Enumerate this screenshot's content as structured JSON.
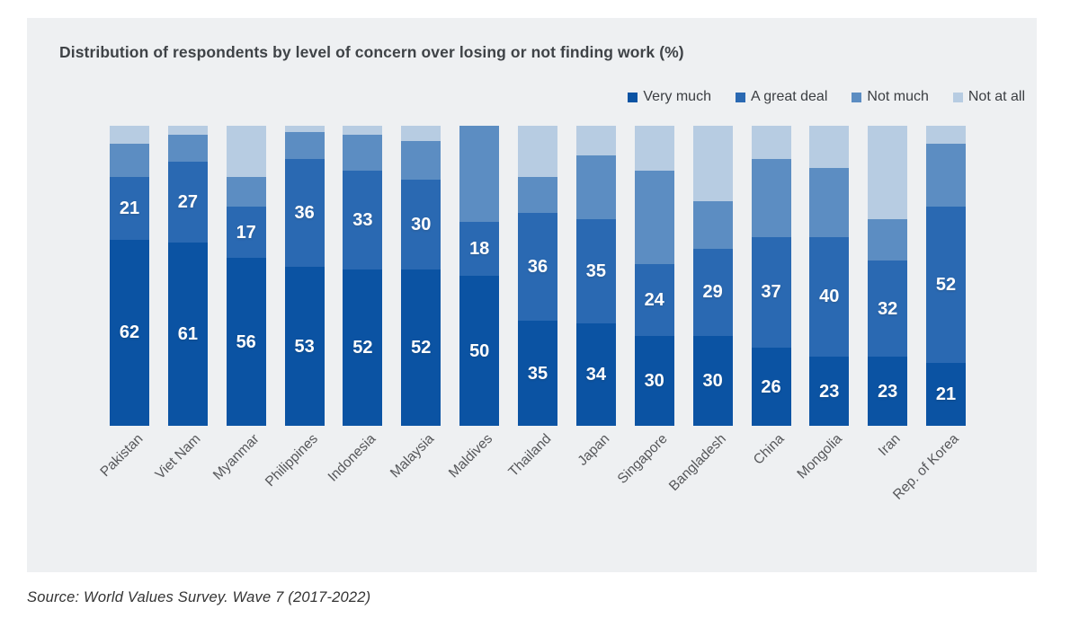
{
  "title": "Distribution of respondents by level of concern over losing or not finding work (%)",
  "source": "Source: World Values Survey. Wave 7 (2017-2022)",
  "colors": {
    "page_bg": "#ffffff",
    "panel_bg": "#eef0f2",
    "title_text": "#3f4347",
    "legend_text": "#3b3e42",
    "axis_label_text": "#56575a",
    "bar_value_text": "#ffffff",
    "source_text": "#333333"
  },
  "chart_data": {
    "type": "bar",
    "stacked": true,
    "unit": "%",
    "ylim": [
      0,
      100
    ],
    "gridlines": false,
    "legend_position": "top-right",
    "labels_shown_for_series": [
      "Very much",
      "A great deal"
    ],
    "categories": [
      "Pakistan",
      "Viet Nam",
      "Myanmar",
      "Philippines",
      "Indonesia",
      "Malaysia",
      "Maldives",
      "Thailand",
      "Japan",
      "Singapore",
      "Bangladesh",
      "China",
      "Mongolia",
      "Iran",
      "Rep. of Korea"
    ],
    "series": [
      {
        "name": "Very much",
        "color": "#0b53a3",
        "values": [
          62,
          61,
          56,
          53,
          52,
          52,
          50,
          35,
          34,
          30,
          30,
          26,
          23,
          23,
          21
        ]
      },
      {
        "name": "A great deal",
        "color": "#2a69b2",
        "values": [
          21,
          27,
          17,
          36,
          33,
          30,
          18,
          36,
          35,
          24,
          29,
          37,
          40,
          32,
          52
        ]
      },
      {
        "name": "Not much",
        "color": "#5c8dc2",
        "values": [
          11,
          9,
          10,
          9,
          12,
          13,
          32,
          12,
          21,
          31,
          16,
          26,
          23,
          14,
          21
        ]
      },
      {
        "name": "Not at all",
        "color": "#b7cce2",
        "values": [
          6,
          3,
          17,
          2,
          3,
          5,
          0,
          17,
          10,
          15,
          25,
          11,
          14,
          31,
          6
        ]
      }
    ]
  }
}
